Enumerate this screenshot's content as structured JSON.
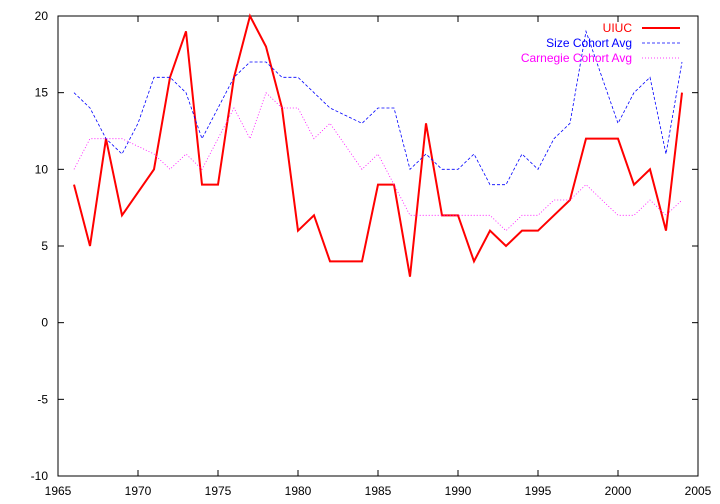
{
  "chart_data": {
    "type": "line",
    "title": "",
    "xlabel": "",
    "ylabel": "",
    "xlim": [
      1965,
      2005
    ],
    "ylim": [
      -10,
      20
    ],
    "x_ticks": [
      1965,
      1970,
      1975,
      1980,
      1985,
      1990,
      1995,
      2000,
      2005
    ],
    "y_ticks": [
      -10,
      -5,
      0,
      5,
      10,
      15,
      20
    ],
    "x_tick_labels": [
      "1965",
      "1970",
      "1975",
      "1980",
      "1985",
      "1990",
      "1995",
      "2000",
      "2005"
    ],
    "y_tick_labels": [
      "-10",
      "-5",
      "0",
      "5",
      "10",
      "15",
      "20"
    ],
    "grid": false,
    "legend_position": "top-right",
    "x": [
      1966,
      1967,
      1968,
      1969,
      1970,
      1971,
      1972,
      1973,
      1974,
      1975,
      1976,
      1977,
      1978,
      1979,
      1980,
      1981,
      1982,
      1983,
      1984,
      1985,
      1986,
      1987,
      1988,
      1989,
      1990,
      1991,
      1992,
      1993,
      1994,
      1995,
      1996,
      1997,
      1998,
      1999,
      2000,
      2001,
      2002,
      2003,
      2004
    ],
    "series": [
      {
        "name": "UIUC",
        "color": "#ff0000",
        "style": "solid",
        "values": [
          9,
          5,
          12,
          7,
          8.5,
          10,
          16,
          19,
          9,
          9,
          16,
          20,
          18,
          14,
          6,
          7,
          4,
          4,
          4,
          9,
          9,
          3,
          13,
          7,
          7,
          4,
          6,
          5,
          6,
          6,
          7,
          8,
          12,
          12,
          12,
          9,
          10,
          6,
          15
        ]
      },
      {
        "name": "Size Cohort Avg",
        "color": "#0000ff",
        "style": "dashed",
        "values": [
          15,
          14,
          12,
          11,
          13,
          16,
          16,
          15,
          12,
          14,
          16,
          17,
          17,
          16,
          16,
          15,
          14,
          13.5,
          13,
          14,
          14,
          10,
          11,
          10,
          10,
          11,
          9,
          9,
          11,
          10,
          12,
          13,
          19,
          16,
          13,
          15,
          16,
          11,
          17
        ]
      },
      {
        "name": "Carnegie Cohort Avg",
        "color": "#ff00ff",
        "style": "dotted",
        "values": [
          10,
          12,
          12,
          12,
          11.5,
          11,
          10,
          11,
          10,
          12,
          14,
          12,
          15,
          14,
          14,
          12,
          13,
          11.5,
          10,
          11,
          9,
          7,
          7,
          7,
          7,
          7,
          7,
          6,
          7,
          7,
          8,
          8,
          9,
          8,
          7,
          7,
          8,
          7,
          8
        ]
      }
    ]
  }
}
